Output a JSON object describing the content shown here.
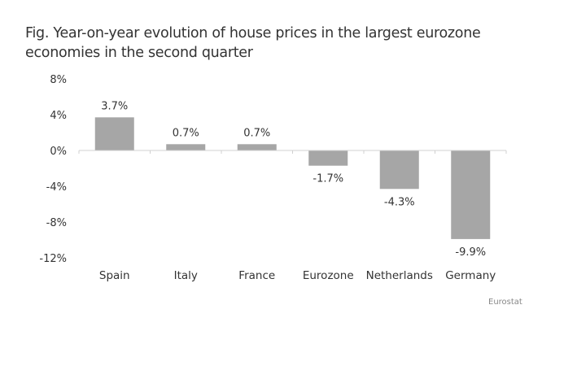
{
  "title": "Fig. Year-on-year evolution of house prices in the largest eurozone economies in the second quarter",
  "source": "Eurostat",
  "chart_data": {
    "type": "bar",
    "title": "Fig. Year-on-year evolution of house prices in the largest eurozone economies in the second quarter",
    "xlabel": "",
    "ylabel": "",
    "categories": [
      "Spain",
      "Italy",
      "France",
      "Eurozone",
      "Netherlands",
      "Germany"
    ],
    "values": [
      3.7,
      0.7,
      0.7,
      -1.7,
      -4.3,
      -9.9
    ],
    "data_labels": [
      "3.7%",
      "0.7%",
      "0.7%",
      "-1.7%",
      "-4.3%",
      "-9.9%"
    ],
    "ylim": [
      -12,
      8
    ],
    "yticks": [
      8,
      4,
      0,
      -4,
      -8,
      -12
    ],
    "ytick_labels": [
      "8%",
      "4%",
      "0%",
      "-4%",
      "-8%",
      "-12%"
    ],
    "grid": false,
    "legend": "none",
    "bar_color": "#a6a6a6",
    "axis_color": "#d0d0d0",
    "source": "Eurostat"
  }
}
